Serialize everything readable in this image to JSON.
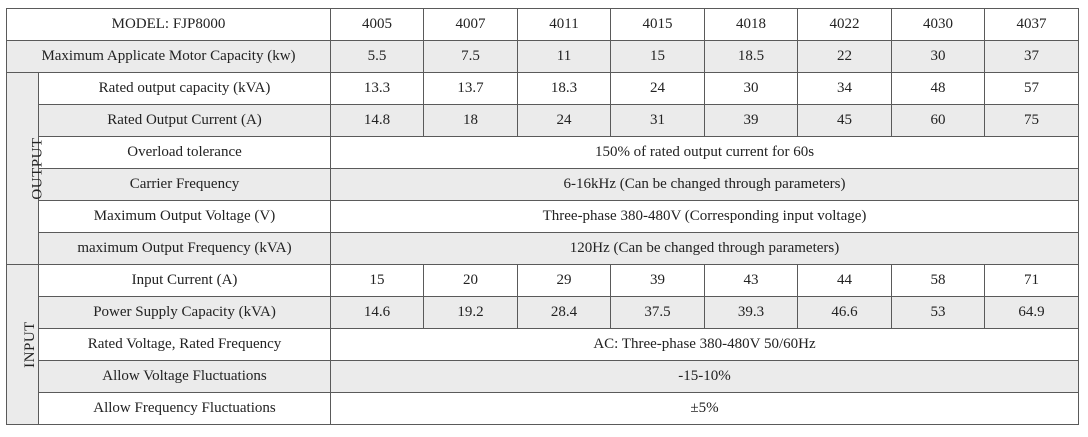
{
  "header": {
    "model_label": "MODEL: FJP8000",
    "models": [
      "4005",
      "4007",
      "4011",
      "4015",
      "4018",
      "4022",
      "4030",
      "4037"
    ]
  },
  "motor": {
    "label": "Maximum Applicate Motor Capacity (kw)",
    "values": [
      "5.5",
      "7.5",
      "11",
      "15",
      "18.5",
      "22",
      "30",
      "37"
    ]
  },
  "output": {
    "group_label": "OUTPUT",
    "rated_capacity": {
      "label": "Rated output capacity (kVA)",
      "values": [
        "13.3",
        "13.7",
        "18.3",
        "24",
        "30",
        "34",
        "48",
        "57"
      ]
    },
    "rated_current": {
      "label": "Rated Output Current (A)",
      "values": [
        "14.8",
        "18",
        "24",
        "31",
        "39",
        "45",
        "60",
        "75"
      ]
    },
    "overload": {
      "label": "Overload tolerance",
      "value": "150% of rated output current for 60s"
    },
    "carrier": {
      "label": "Carrier Frequency",
      "value": "6-16kHz (Can be changed through parameters)"
    },
    "max_voltage": {
      "label": "Maximum Output Voltage (V)",
      "value": "Three-phase 380-480V (Corresponding input voltage)"
    },
    "max_frequency": {
      "label": "maximum Output Frequency (kVA)",
      "value": "120Hz (Can be changed through parameters)"
    }
  },
  "input": {
    "group_label": "INPUT",
    "current": {
      "label": "Input Current (A)",
      "values": [
        "15",
        "20",
        "29",
        "39",
        "43",
        "44",
        "58",
        "71"
      ]
    },
    "power_supply": {
      "label": "Power Supply Capacity (kVA)",
      "values": [
        "14.6",
        "19.2",
        "28.4",
        "37.5",
        "39.3",
        "46.6",
        "53",
        "64.9"
      ]
    },
    "rated_voltage": {
      "label": "Rated Voltage, Rated Frequency",
      "value": "AC: Three-phase 380-480V 50/60Hz"
    },
    "voltage_fluct": {
      "label": "Allow Voltage Fluctuations",
      "value": "-15-10%"
    },
    "freq_fluct": {
      "label": "Allow Frequency Fluctuations",
      "value": "±5%"
    }
  }
}
